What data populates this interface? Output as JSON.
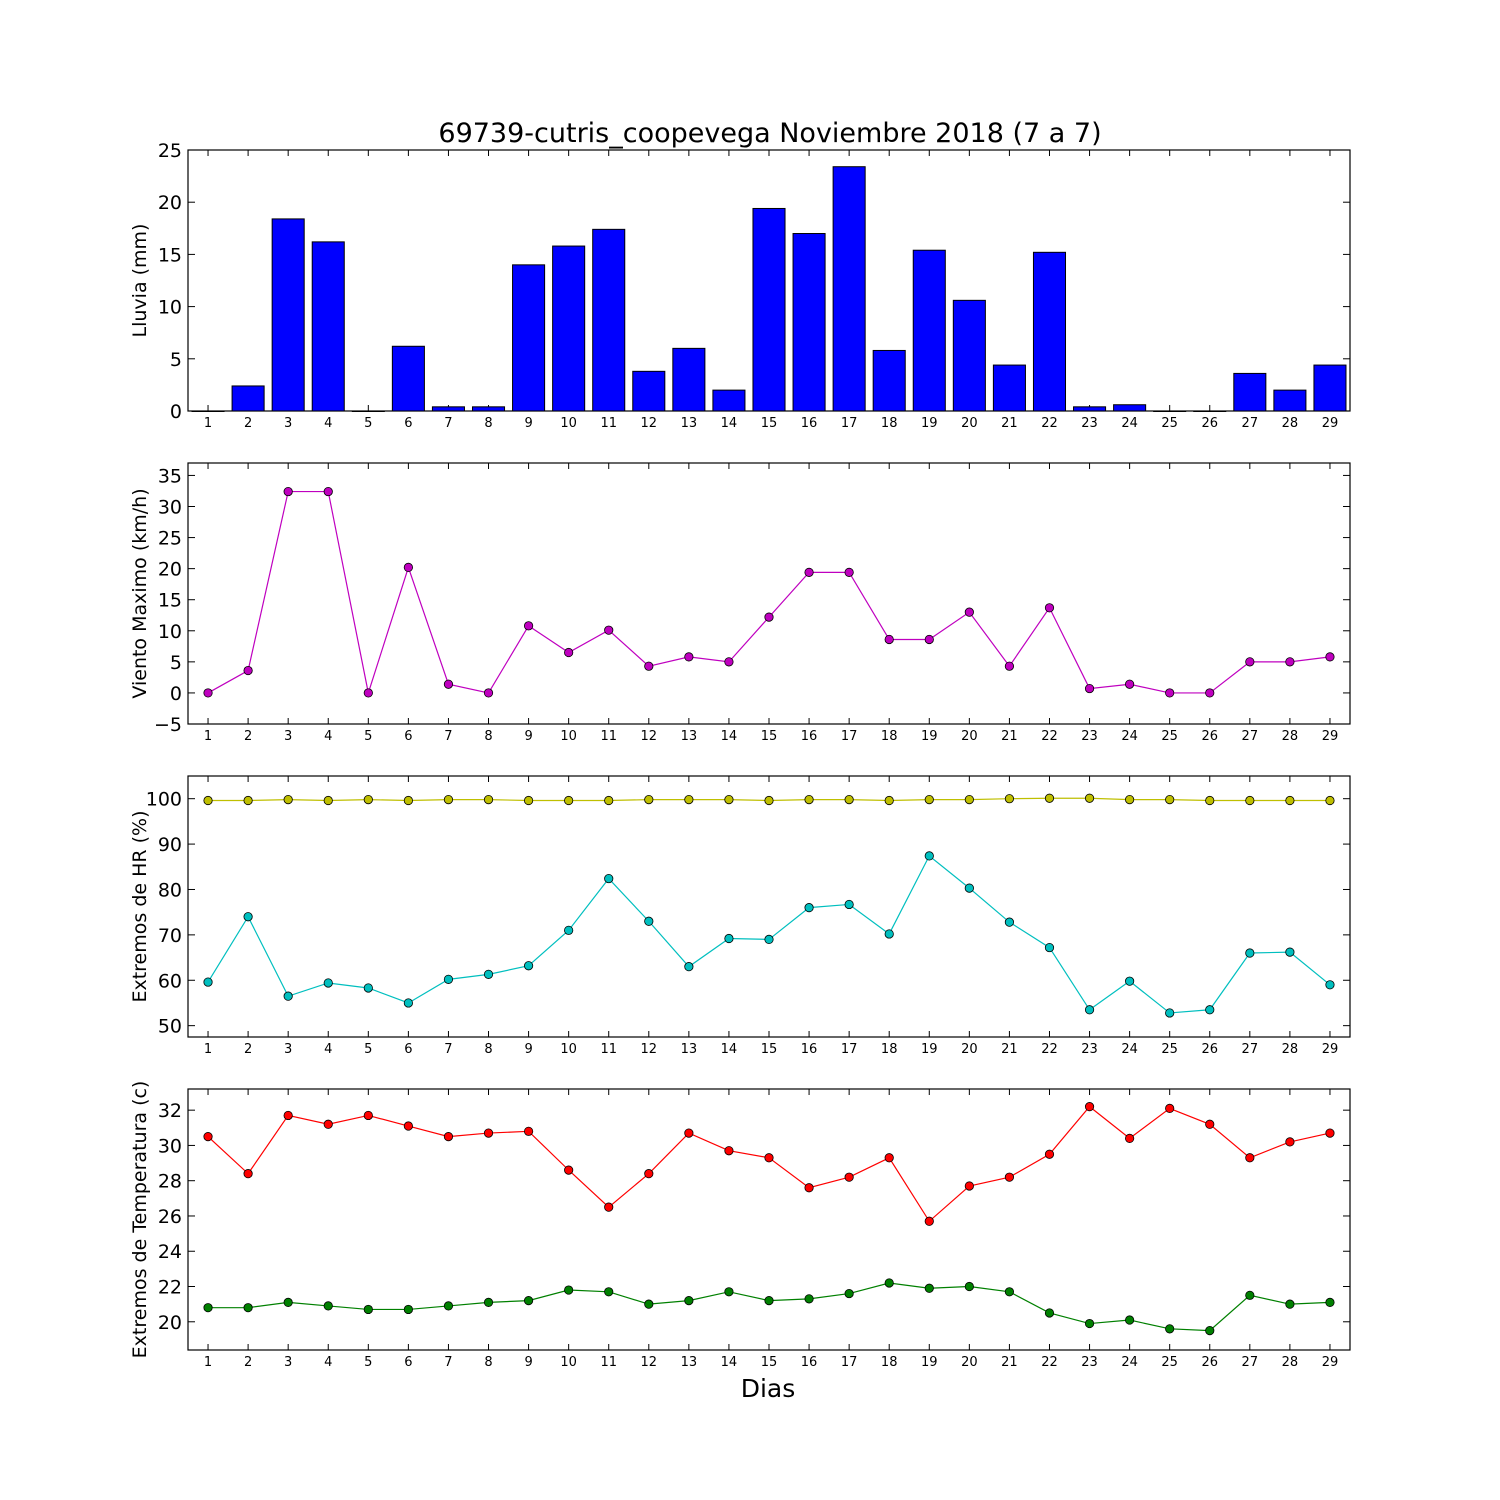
{
  "title": "69739-cutris_coopevega Noviembre 2018  (7 a 7)",
  "xlabel": "Dias",
  "chart_data": [
    {
      "type": "bar",
      "ylabel": "Lluvia (mm)",
      "ylim": [
        0,
        25
      ],
      "yticks": [
        0,
        5,
        10,
        15,
        20,
        25
      ],
      "color": "#0000ff",
      "categories": [
        1,
        2,
        3,
        4,
        5,
        6,
        7,
        8,
        9,
        10,
        11,
        12,
        13,
        14,
        15,
        16,
        17,
        18,
        19,
        20,
        21,
        22,
        23,
        24,
        25,
        26,
        27,
        28,
        29
      ],
      "series": [
        {
          "values": [
            0,
            2.4,
            18.4,
            16.2,
            0,
            6.2,
            0.4,
            0.4,
            14,
            15.8,
            17.4,
            3.8,
            6,
            2,
            19.4,
            17,
            23.4,
            5.8,
            15.4,
            10.6,
            4.4,
            15.2,
            0.4,
            0.6,
            0,
            0,
            3.6,
            2,
            4.4
          ]
        }
      ]
    },
    {
      "type": "line",
      "ylabel": "Viento Maximo (km/h)",
      "ylim": [
        -5,
        37
      ],
      "yticks": [
        -5,
        0,
        5,
        10,
        15,
        20,
        25,
        30,
        35
      ],
      "categories": [
        1,
        2,
        3,
        4,
        5,
        6,
        7,
        8,
        9,
        10,
        11,
        12,
        13,
        14,
        15,
        16,
        17,
        18,
        19,
        20,
        21,
        22,
        23,
        24,
        25,
        26,
        27,
        28,
        29
      ],
      "series": [
        {
          "color": "#bf00bf",
          "values": [
            0,
            3.6,
            32.4,
            32.4,
            0,
            20.2,
            1.4,
            0,
            10.8,
            6.5,
            10.1,
            4.3,
            5.8,
            5,
            12.2,
            19.4,
            19.4,
            8.6,
            8.6,
            13,
            4.3,
            13.7,
            0.7,
            1.4,
            0,
            0,
            5,
            5,
            5.8
          ]
        }
      ]
    },
    {
      "type": "line",
      "ylabel": "Extremos de HR (%)",
      "ylim": [
        47.5,
        105
      ],
      "yticks": [
        50,
        60,
        70,
        80,
        90,
        100
      ],
      "categories": [
        1,
        2,
        3,
        4,
        5,
        6,
        7,
        8,
        9,
        10,
        11,
        12,
        13,
        14,
        15,
        16,
        17,
        18,
        19,
        20,
        21,
        22,
        23,
        24,
        25,
        26,
        27,
        28,
        29
      ],
      "series": [
        {
          "color": "#bfbf00",
          "values": [
            99.6,
            99.6,
            99.8,
            99.6,
            99.8,
            99.6,
            99.8,
            99.8,
            99.6,
            99.6,
            99.6,
            99.8,
            99.8,
            99.8,
            99.6,
            99.8,
            99.8,
            99.6,
            99.8,
            99.8,
            100,
            100.1,
            100.1,
            99.8,
            99.8,
            99.6,
            99.6,
            99.6,
            99.6
          ]
        },
        {
          "color": "#00bfbf",
          "values": [
            59.6,
            74,
            56.5,
            59.4,
            58.3,
            55,
            60.2,
            61.3,
            63.2,
            71,
            82.4,
            73,
            63,
            69.2,
            69,
            76,
            76.7,
            70.2,
            87.4,
            80.3,
            72.8,
            67.2,
            53.5,
            59.8,
            52.8,
            53.5,
            66,
            66.2,
            59
          ]
        }
      ]
    },
    {
      "type": "line",
      "ylabel": "Extremos de Temperatura (c)",
      "ylim": [
        18.4,
        33.2
      ],
      "yticks": [
        20,
        22,
        24,
        26,
        28,
        30,
        32
      ],
      "categories": [
        1,
        2,
        3,
        4,
        5,
        6,
        7,
        8,
        9,
        10,
        11,
        12,
        13,
        14,
        15,
        16,
        17,
        18,
        19,
        20,
        21,
        22,
        23,
        24,
        25,
        26,
        27,
        28,
        29
      ],
      "series": [
        {
          "color": "#ff0000",
          "values": [
            30.5,
            28.4,
            31.7,
            31.2,
            31.7,
            31.1,
            30.5,
            30.7,
            30.8,
            28.6,
            26.5,
            28.4,
            30.7,
            29.7,
            29.3,
            27.6,
            28.2,
            29.3,
            25.7,
            27.7,
            28.2,
            29.5,
            32.2,
            30.4,
            32.1,
            31.2,
            29.3,
            30.2,
            30.7
          ]
        },
        {
          "color": "#008000",
          "values": [
            20.8,
            20.8,
            21.1,
            20.9,
            20.7,
            20.7,
            20.9,
            21.1,
            21.2,
            21.8,
            21.7,
            21,
            21.2,
            21.7,
            21.2,
            21.3,
            21.6,
            22.2,
            21.9,
            22,
            21.7,
            20.5,
            19.9,
            20.1,
            19.6,
            19.5,
            21.5,
            21,
            21.1
          ]
        }
      ]
    }
  ]
}
